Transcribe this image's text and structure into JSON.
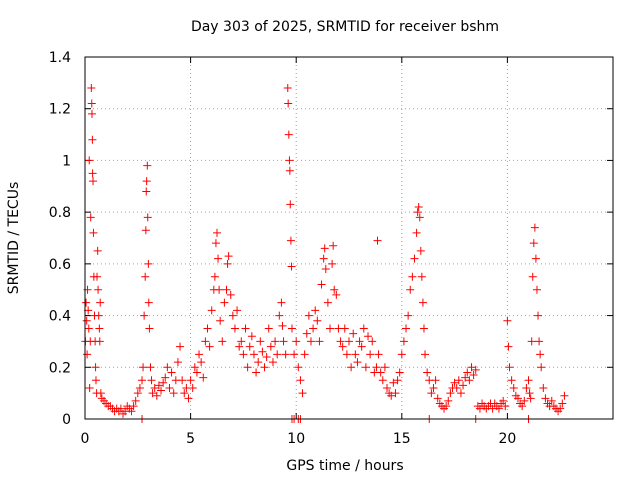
{
  "chart_data": {
    "type": "scatter",
    "title": "Day 303 of 2025, SRMTID for receiver bshm",
    "xlabel": "GPS time / hours",
    "ylabel": "SRMTID / TECUs",
    "xlim": [
      0,
      25
    ],
    "ylim": [
      0,
      1.4
    ],
    "xticks": [
      0,
      5,
      10,
      15,
      20
    ],
    "xtick_labels": [
      "0",
      "5",
      "10",
      "15",
      "20"
    ],
    "yticks": [
      0,
      0.2,
      0.4,
      0.6,
      0.8,
      1,
      1.2,
      1.4
    ],
    "ytick_labels": [
      "0",
      "0.2",
      "0.4",
      "0.6",
      "0.8",
      "1",
      "1.2",
      "1.4"
    ],
    "grid": true,
    "marker": "+",
    "series": [
      {
        "name": "SRMTID",
        "color": "#ff0000",
        "points": [
          [
            0.02,
            0.3
          ],
          [
            0.05,
            0.45
          ],
          [
            0.08,
            0.38
          ],
          [
            0.1,
            0.25
          ],
          [
            0.12,
            0.5
          ],
          [
            0.15,
            0.42
          ],
          [
            0.18,
            0.35
          ],
          [
            0.2,
            1.0
          ],
          [
            0.22,
            0.12
          ],
          [
            0.25,
            0.3
          ],
          [
            0.27,
            0.78
          ],
          [
            0.3,
            1.28
          ],
          [
            0.32,
            1.22
          ],
          [
            0.33,
            1.18
          ],
          [
            0.35,
            1.08
          ],
          [
            0.36,
            0.95
          ],
          [
            0.38,
            0.92
          ],
          [
            0.4,
            0.72
          ],
          [
            0.42,
            0.55
          ],
          [
            0.45,
            0.4
          ],
          [
            0.48,
            0.3
          ],
          [
            0.5,
            0.2
          ],
          [
            0.52,
            0.15
          ],
          [
            0.55,
            0.1
          ],
          [
            0.57,
            0.55
          ],
          [
            0.6,
            0.65
          ],
          [
            0.62,
            0.5
          ],
          [
            0.65,
            0.4
          ],
          [
            0.68,
            0.35
          ],
          [
            0.7,
            0.3
          ],
          [
            0.72,
            0.45
          ],
          [
            0.75,
            0.1
          ],
          [
            0.8,
            0.08
          ],
          [
            0.9,
            0.07
          ],
          [
            1.0,
            0.06
          ],
          [
            1.1,
            0.05
          ],
          [
            1.2,
            0.05
          ],
          [
            1.3,
            0.04
          ],
          [
            1.4,
            0.03
          ],
          [
            1.5,
            0.04
          ],
          [
            1.6,
            0.03
          ],
          [
            1.7,
            0.04
          ],
          [
            1.8,
            0.02
          ],
          [
            1.9,
            0.03
          ],
          [
            2.0,
            0.05
          ],
          [
            2.1,
            0.04
          ],
          [
            2.2,
            0.03
          ],
          [
            2.3,
            0.05
          ],
          [
            2.4,
            0.07
          ],
          [
            2.5,
            0.1
          ],
          [
            2.6,
            0.12
          ],
          [
            2.7,
            0.15
          ],
          [
            2.75,
            0.2
          ],
          [
            2.8,
            0.4
          ],
          [
            2.85,
            0.55
          ],
          [
            2.88,
            0.73
          ],
          [
            2.9,
            0.88
          ],
          [
            2.92,
            0.92
          ],
          [
            2.95,
            0.98
          ],
          [
            2.97,
            0.78
          ],
          [
            3.0,
            0.6
          ],
          [
            3.02,
            0.45
          ],
          [
            3.05,
            0.35
          ],
          [
            3.1,
            0.2
          ],
          [
            3.15,
            0.15
          ],
          [
            3.2,
            0.1
          ],
          [
            3.3,
            0.12
          ],
          [
            3.4,
            0.09
          ],
          [
            3.5,
            0.13
          ],
          [
            3.6,
            0.11
          ],
          [
            3.7,
            0.14
          ],
          [
            3.8,
            0.16
          ],
          [
            3.9,
            0.2
          ],
          [
            4.0,
            0.12
          ],
          [
            4.1,
            0.18
          ],
          [
            4.2,
            0.1
          ],
          [
            4.3,
            0.15
          ],
          [
            4.4,
            0.22
          ],
          [
            4.5,
            0.28
          ],
          [
            4.6,
            0.15
          ],
          [
            4.7,
            0.1
          ],
          [
            4.8,
            0.12
          ],
          [
            4.9,
            0.08
          ],
          [
            5.0,
            0.15
          ],
          [
            5.1,
            0.12
          ],
          [
            5.2,
            0.2
          ],
          [
            5.3,
            0.18
          ],
          [
            5.4,
            0.25
          ],
          [
            5.5,
            0.22
          ],
          [
            5.6,
            0.16
          ],
          [
            5.7,
            0.3
          ],
          [
            5.8,
            0.35
          ],
          [
            5.9,
            0.28
          ],
          [
            6.0,
            0.42
          ],
          [
            6.1,
            0.5
          ],
          [
            6.15,
            0.55
          ],
          [
            6.2,
            0.68
          ],
          [
            6.25,
            0.72
          ],
          [
            6.3,
            0.62
          ],
          [
            6.35,
            0.5
          ],
          [
            6.4,
            0.38
          ],
          [
            6.5,
            0.3
          ],
          [
            6.6,
            0.45
          ],
          [
            6.7,
            0.5
          ],
          [
            6.75,
            0.6
          ],
          [
            6.8,
            0.63
          ],
          [
            6.9,
            0.48
          ],
          [
            7.0,
            0.4
          ],
          [
            7.1,
            0.35
          ],
          [
            7.2,
            0.42
          ],
          [
            7.3,
            0.28
          ],
          [
            7.4,
            0.3
          ],
          [
            7.5,
            0.25
          ],
          [
            7.6,
            0.35
          ],
          [
            7.7,
            0.2
          ],
          [
            7.8,
            0.28
          ],
          [
            7.9,
            0.32
          ],
          [
            8.0,
            0.25
          ],
          [
            8.1,
            0.18
          ],
          [
            8.2,
            0.22
          ],
          [
            8.3,
            0.3
          ],
          [
            8.4,
            0.26
          ],
          [
            8.5,
            0.2
          ],
          [
            8.6,
            0.24
          ],
          [
            8.7,
            0.35
          ],
          [
            8.8,
            0.28
          ],
          [
            8.9,
            0.22
          ],
          [
            9.0,
            0.3
          ],
          [
            9.1,
            0.25
          ],
          [
            9.2,
            0.4
          ],
          [
            9.3,
            0.45
          ],
          [
            9.35,
            0.36
          ],
          [
            9.4,
            0.3
          ],
          [
            9.5,
            0.25
          ],
          [
            9.6,
            1.28
          ],
          [
            9.62,
            1.22
          ],
          [
            9.65,
            1.1
          ],
          [
            9.68,
            1.0
          ],
          [
            9.7,
            0.96
          ],
          [
            9.72,
            0.83
          ],
          [
            9.75,
            0.69
          ],
          [
            9.78,
            0.59
          ],
          [
            9.8,
            0.35
          ],
          [
            9.9,
            0.25
          ],
          [
            10.0,
            0.3
          ],
          [
            10.1,
            0.2
          ],
          [
            10.2,
            0.15
          ],
          [
            10.3,
            0.1
          ],
          [
            10.4,
            0.25
          ],
          [
            10.5,
            0.33
          ],
          [
            10.6,
            0.4
          ],
          [
            10.7,
            0.3
          ],
          [
            10.8,
            0.35
          ],
          [
            10.9,
            0.42
          ],
          [
            11.0,
            0.38
          ],
          [
            11.1,
            0.3
          ],
          [
            11.2,
            0.52
          ],
          [
            11.3,
            0.62
          ],
          [
            11.35,
            0.66
          ],
          [
            11.4,
            0.58
          ],
          [
            11.5,
            0.45
          ],
          [
            11.6,
            0.35
          ],
          [
            11.7,
            0.6
          ],
          [
            11.75,
            0.67
          ],
          [
            11.8,
            0.5
          ],
          [
            11.9,
            0.48
          ],
          [
            12.0,
            0.35
          ],
          [
            12.1,
            0.3
          ],
          [
            12.2,
            0.28
          ],
          [
            12.3,
            0.35
          ],
          [
            12.4,
            0.25
          ],
          [
            12.5,
            0.3
          ],
          [
            12.6,
            0.2
          ],
          [
            12.7,
            0.33
          ],
          [
            12.8,
            0.25
          ],
          [
            12.9,
            0.22
          ],
          [
            13.0,
            0.3
          ],
          [
            13.1,
            0.28
          ],
          [
            13.2,
            0.35
          ],
          [
            13.3,
            0.2
          ],
          [
            13.4,
            0.32
          ],
          [
            13.5,
            0.25
          ],
          [
            13.6,
            0.3
          ],
          [
            13.7,
            0.18
          ],
          [
            13.8,
            0.2
          ],
          [
            13.85,
            0.69
          ],
          [
            13.9,
            0.25
          ],
          [
            14.0,
            0.18
          ],
          [
            14.1,
            0.15
          ],
          [
            14.2,
            0.2
          ],
          [
            14.3,
            0.12
          ],
          [
            14.4,
            0.1
          ],
          [
            14.5,
            0.09
          ],
          [
            14.6,
            0.14
          ],
          [
            14.7,
            0.1
          ],
          [
            14.8,
            0.15
          ],
          [
            14.9,
            0.18
          ],
          [
            15.0,
            0.25
          ],
          [
            15.1,
            0.3
          ],
          [
            15.2,
            0.35
          ],
          [
            15.3,
            0.4
          ],
          [
            15.4,
            0.5
          ],
          [
            15.5,
            0.55
          ],
          [
            15.6,
            0.62
          ],
          [
            15.7,
            0.72
          ],
          [
            15.75,
            0.8
          ],
          [
            15.8,
            0.82
          ],
          [
            15.85,
            0.78
          ],
          [
            15.9,
            0.65
          ],
          [
            15.95,
            0.55
          ],
          [
            16.0,
            0.45
          ],
          [
            16.05,
            0.35
          ],
          [
            16.1,
            0.25
          ],
          [
            16.2,
            0.18
          ],
          [
            16.3,
            0.15
          ],
          [
            16.4,
            0.1
          ],
          [
            16.5,
            0.12
          ],
          [
            16.6,
            0.15
          ],
          [
            16.7,
            0.08
          ],
          [
            16.8,
            0.06
          ],
          [
            16.9,
            0.05
          ],
          [
            17.0,
            0.04
          ],
          [
            17.1,
            0.05
          ],
          [
            17.2,
            0.07
          ],
          [
            17.3,
            0.1
          ],
          [
            17.4,
            0.12
          ],
          [
            17.5,
            0.14
          ],
          [
            17.6,
            0.12
          ],
          [
            17.7,
            0.15
          ],
          [
            17.8,
            0.1
          ],
          [
            17.9,
            0.13
          ],
          [
            18.0,
            0.16
          ],
          [
            18.1,
            0.18
          ],
          [
            18.2,
            0.15
          ],
          [
            18.3,
            0.2
          ],
          [
            18.4,
            0.17
          ],
          [
            18.5,
            0.19
          ],
          [
            18.6,
            0.05
          ],
          [
            18.7,
            0.04
          ],
          [
            18.8,
            0.06
          ],
          [
            18.9,
            0.05
          ],
          [
            19.0,
            0.04
          ],
          [
            19.1,
            0.05
          ],
          [
            19.2,
            0.06
          ],
          [
            19.3,
            0.04
          ],
          [
            19.4,
            0.06
          ],
          [
            19.5,
            0.05
          ],
          [
            19.6,
            0.04
          ],
          [
            19.7,
            0.06
          ],
          [
            19.8,
            0.07
          ],
          [
            19.9,
            0.05
          ],
          [
            20.0,
            0.38
          ],
          [
            20.05,
            0.28
          ],
          [
            20.1,
            0.2
          ],
          [
            20.2,
            0.15
          ],
          [
            20.3,
            0.12
          ],
          [
            20.4,
            0.09
          ],
          [
            20.5,
            0.08
          ],
          [
            20.6,
            0.06
          ],
          [
            20.7,
            0.05
          ],
          [
            20.8,
            0.07
          ],
          [
            20.9,
            0.12
          ],
          [
            21.0,
            0.15
          ],
          [
            21.05,
            0.1
          ],
          [
            21.1,
            0.08
          ],
          [
            21.15,
            0.3
          ],
          [
            21.2,
            0.55
          ],
          [
            21.25,
            0.68
          ],
          [
            21.3,
            0.74
          ],
          [
            21.35,
            0.62
          ],
          [
            21.4,
            0.5
          ],
          [
            21.45,
            0.4
          ],
          [
            21.5,
            0.3
          ],
          [
            21.55,
            0.25
          ],
          [
            21.6,
            0.2
          ],
          [
            21.7,
            0.12
          ],
          [
            21.8,
            0.08
          ],
          [
            21.9,
            0.06
          ],
          [
            22.0,
            0.05
          ],
          [
            22.1,
            0.07
          ],
          [
            22.2,
            0.05
          ],
          [
            22.3,
            0.04
          ],
          [
            22.4,
            0.03
          ],
          [
            22.5,
            0.04
          ],
          [
            22.6,
            0.06
          ],
          [
            22.7,
            0.09
          ],
          [
            9.8,
            0.0
          ],
          [
            9.9,
            0.0
          ],
          [
            10.1,
            0.0
          ],
          [
            10.2,
            0.0
          ],
          [
            16.3,
            0.0
          ],
          [
            18.5,
            0.0
          ],
          [
            21.0,
            0.0
          ],
          [
            2.7,
            0.0
          ]
        ]
      }
    ]
  }
}
